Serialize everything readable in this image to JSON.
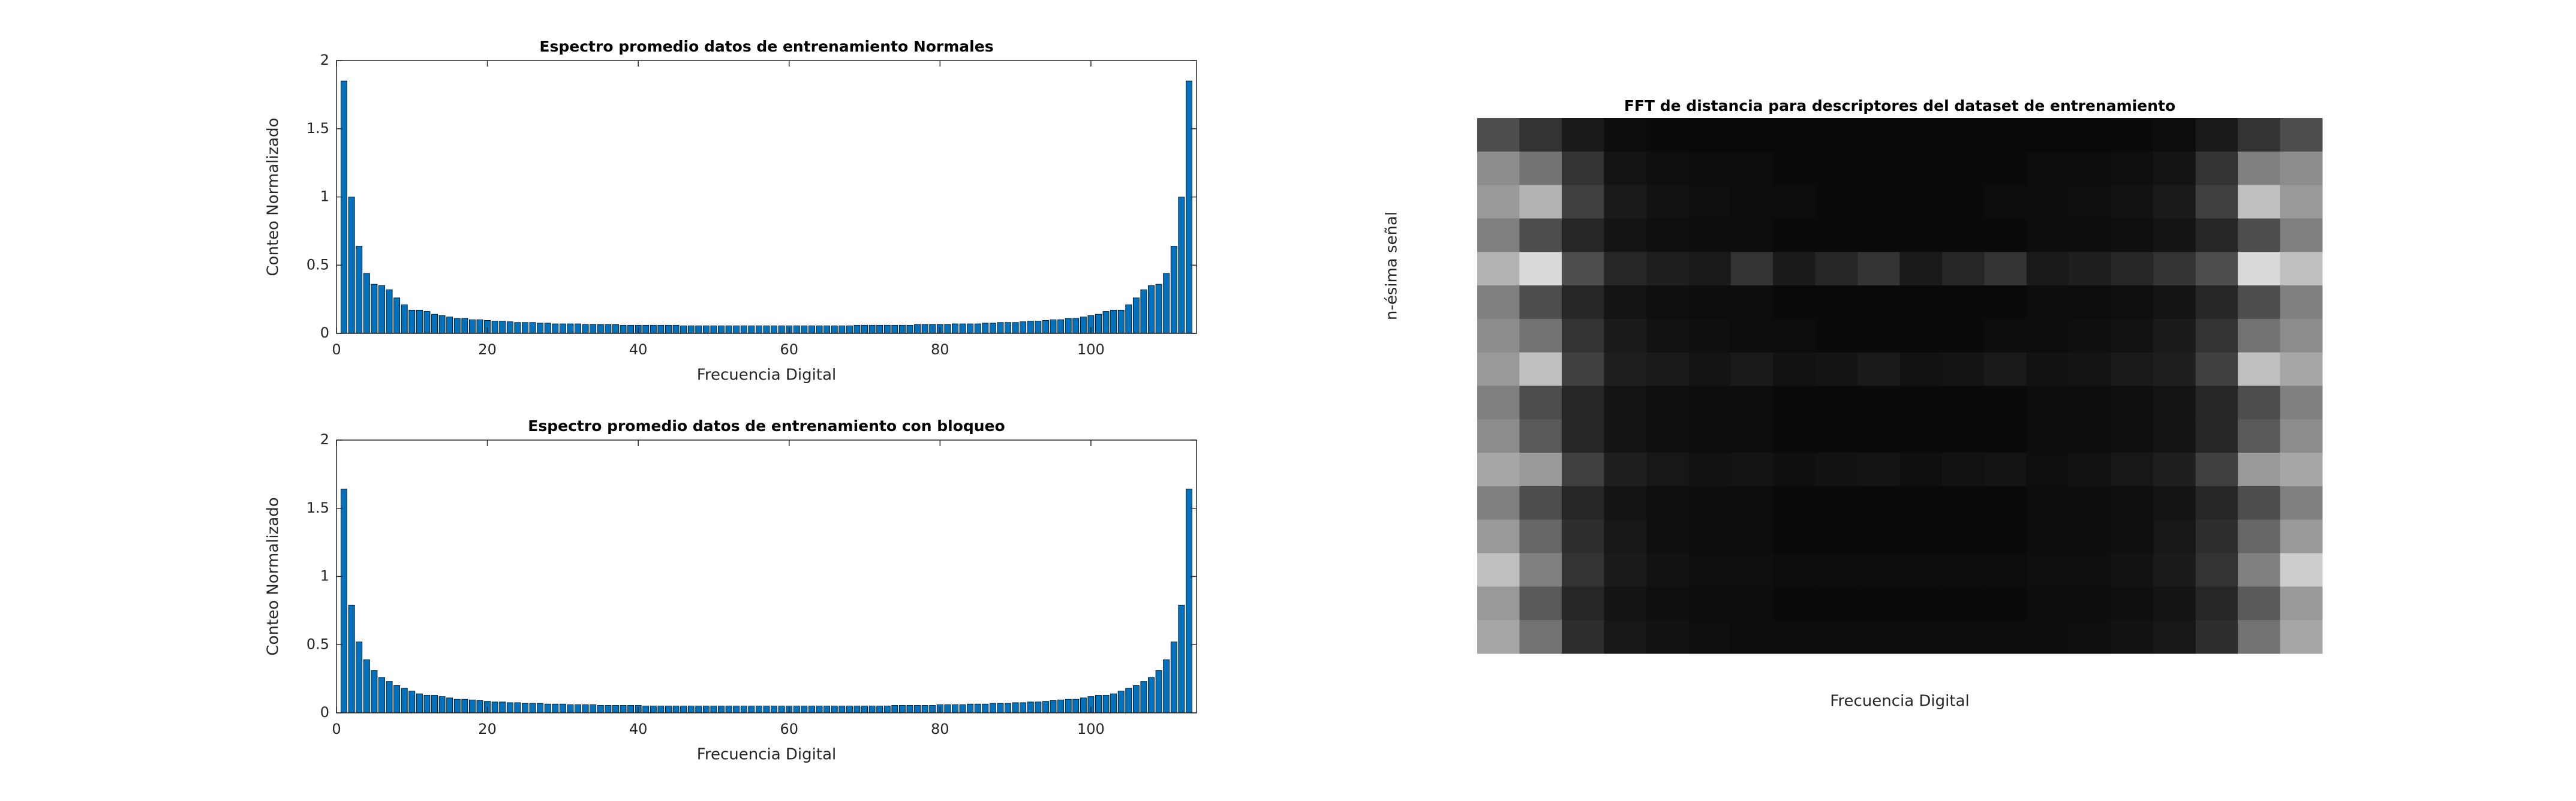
{
  "chart_data": [
    {
      "type": "bar",
      "title": "Espectro promedio datos de entrenamiento Normales",
      "xlabel": "Frecuencia Digital",
      "ylabel": "Conteo Normalizado",
      "color": "#0072bd",
      "x": [
        1,
        2,
        3,
        4,
        5,
        6,
        7,
        8,
        9,
        10,
        11,
        12,
        13,
        14,
        15,
        16,
        17,
        18,
        19,
        20,
        21,
        22,
        23,
        24,
        25,
        26,
        27,
        28,
        29,
        30,
        31,
        32,
        33,
        34,
        35,
        36,
        37,
        38,
        39,
        40,
        41,
        42,
        43,
        44,
        45,
        46,
        47,
        48,
        49,
        50,
        51,
        52,
        53,
        54,
        55,
        56,
        57,
        58,
        59,
        60,
        61,
        62,
        63,
        64,
        65,
        66,
        67,
        68,
        69,
        70,
        71,
        72,
        73,
        74,
        75,
        76,
        77,
        78,
        79,
        80,
        81,
        82,
        83,
        84,
        85,
        86,
        87,
        88,
        89,
        90,
        91,
        92,
        93,
        94,
        95,
        96,
        97,
        98,
        99,
        100,
        101,
        102,
        103,
        104,
        105,
        106,
        107,
        108,
        109,
        110,
        111,
        112,
        113
      ],
      "values": [
        1.85,
        1.0,
        0.64,
        0.44,
        0.36,
        0.35,
        0.32,
        0.26,
        0.21,
        0.17,
        0.17,
        0.16,
        0.14,
        0.13,
        0.12,
        0.11,
        0.11,
        0.1,
        0.1,
        0.095,
        0.09,
        0.09,
        0.085,
        0.08,
        0.08,
        0.08,
        0.075,
        0.075,
        0.07,
        0.07,
        0.07,
        0.07,
        0.065,
        0.065,
        0.065,
        0.065,
        0.065,
        0.06,
        0.06,
        0.06,
        0.06,
        0.06,
        0.06,
        0.06,
        0.06,
        0.055,
        0.055,
        0.055,
        0.055,
        0.055,
        0.055,
        0.055,
        0.055,
        0.055,
        0.055,
        0.055,
        0.055,
        0.055,
        0.055,
        0.055,
        0.055,
        0.055,
        0.055,
        0.055,
        0.055,
        0.055,
        0.055,
        0.055,
        0.06,
        0.06,
        0.06,
        0.06,
        0.06,
        0.06,
        0.06,
        0.06,
        0.065,
        0.065,
        0.065,
        0.065,
        0.065,
        0.07,
        0.07,
        0.07,
        0.07,
        0.075,
        0.075,
        0.08,
        0.08,
        0.08,
        0.085,
        0.09,
        0.09,
        0.095,
        0.1,
        0.1,
        0.11,
        0.11,
        0.12,
        0.13,
        0.14,
        0.16,
        0.17,
        0.17,
        0.21,
        0.26,
        0.32,
        0.35,
        0.36,
        0.44,
        0.64,
        1.0,
        1.85
      ],
      "xlim": [
        0,
        114
      ],
      "xticks": [
        0,
        20,
        40,
        60,
        80,
        100
      ],
      "ylim": [
        0,
        2
      ],
      "yticks": [
        0,
        0.5,
        1,
        1.5,
        2
      ]
    },
    {
      "type": "bar",
      "title": "Espectro promedio datos de entrenamiento con bloqueo",
      "xlabel": "Frecuencia Digital",
      "ylabel": "Conteo Normalizado",
      "color": "#0072bd",
      "x": [
        1,
        2,
        3,
        4,
        5,
        6,
        7,
        8,
        9,
        10,
        11,
        12,
        13,
        14,
        15,
        16,
        17,
        18,
        19,
        20,
        21,
        22,
        23,
        24,
        25,
        26,
        27,
        28,
        29,
        30,
        31,
        32,
        33,
        34,
        35,
        36,
        37,
        38,
        39,
        40,
        41,
        42,
        43,
        44,
        45,
        46,
        47,
        48,
        49,
        50,
        51,
        52,
        53,
        54,
        55,
        56,
        57,
        58,
        59,
        60,
        61,
        62,
        63,
        64,
        65,
        66,
        67,
        68,
        69,
        70,
        71,
        72,
        73,
        74,
        75,
        76,
        77,
        78,
        79,
        80,
        81,
        82,
        83,
        84,
        85,
        86,
        87,
        88,
        89,
        90,
        91,
        92,
        93,
        94,
        95,
        96,
        97,
        98,
        99,
        100,
        101,
        102,
        103,
        104,
        105,
        106,
        107,
        108,
        109,
        110,
        111,
        112,
        113
      ],
      "values": [
        1.64,
        0.79,
        0.52,
        0.39,
        0.31,
        0.26,
        0.23,
        0.2,
        0.18,
        0.16,
        0.14,
        0.13,
        0.13,
        0.12,
        0.11,
        0.1,
        0.1,
        0.095,
        0.09,
        0.085,
        0.08,
        0.08,
        0.075,
        0.075,
        0.07,
        0.07,
        0.07,
        0.065,
        0.065,
        0.065,
        0.06,
        0.06,
        0.06,
        0.06,
        0.055,
        0.055,
        0.055,
        0.055,
        0.055,
        0.055,
        0.05,
        0.05,
        0.05,
        0.05,
        0.05,
        0.05,
        0.05,
        0.05,
        0.05,
        0.05,
        0.05,
        0.05,
        0.05,
        0.05,
        0.05,
        0.05,
        0.05,
        0.05,
        0.05,
        0.05,
        0.05,
        0.05,
        0.05,
        0.05,
        0.05,
        0.05,
        0.05,
        0.05,
        0.05,
        0.05,
        0.05,
        0.05,
        0.05,
        0.055,
        0.055,
        0.055,
        0.055,
        0.055,
        0.055,
        0.06,
        0.06,
        0.06,
        0.06,
        0.065,
        0.065,
        0.065,
        0.07,
        0.07,
        0.07,
        0.075,
        0.075,
        0.08,
        0.08,
        0.085,
        0.09,
        0.095,
        0.1,
        0.1,
        0.11,
        0.12,
        0.13,
        0.13,
        0.14,
        0.16,
        0.18,
        0.2,
        0.23,
        0.26,
        0.31,
        0.39,
        0.52,
        0.79,
        1.64
      ],
      "xlim": [
        0,
        114
      ],
      "xticks": [
        0,
        20,
        40,
        60,
        80,
        100
      ],
      "ylim": [
        0,
        2
      ],
      "yticks": [
        0,
        0.5,
        1,
        1.5,
        2
      ]
    },
    {
      "type": "heatmap",
      "title": "FFT de distancia para descriptores del dataset de entrenamiento",
      "xlabel": "Frecuencia Digital",
      "ylabel": "n-ésima señal",
      "values": [
        [
          0.3,
          0.2,
          0.1,
          0.05,
          0.04,
          0.03,
          0.03,
          0.03,
          0.03,
          0.03,
          0.03,
          0.03,
          0.03,
          0.03,
          0.03,
          0.04,
          0.05,
          0.1,
          0.2,
          0.3
        ],
        [
          0.55,
          0.45,
          0.2,
          0.08,
          0.06,
          0.05,
          0.05,
          0.04,
          0.04,
          0.04,
          0.04,
          0.04,
          0.04,
          0.05,
          0.05,
          0.06,
          0.08,
          0.2,
          0.5,
          0.55
        ],
        [
          0.6,
          0.7,
          0.25,
          0.1,
          0.07,
          0.06,
          0.05,
          0.05,
          0.04,
          0.04,
          0.04,
          0.04,
          0.05,
          0.05,
          0.06,
          0.07,
          0.1,
          0.25,
          0.75,
          0.6
        ],
        [
          0.5,
          0.3,
          0.15,
          0.08,
          0.06,
          0.05,
          0.05,
          0.04,
          0.04,
          0.04,
          0.04,
          0.04,
          0.04,
          0.05,
          0.05,
          0.06,
          0.08,
          0.15,
          0.3,
          0.5
        ],
        [
          0.7,
          0.85,
          0.3,
          0.15,
          0.12,
          0.1,
          0.2,
          0.1,
          0.15,
          0.2,
          0.1,
          0.15,
          0.2,
          0.1,
          0.12,
          0.15,
          0.2,
          0.3,
          0.85,
          0.75
        ],
        [
          0.5,
          0.3,
          0.15,
          0.08,
          0.06,
          0.05,
          0.05,
          0.04,
          0.04,
          0.04,
          0.04,
          0.04,
          0.04,
          0.05,
          0.05,
          0.06,
          0.08,
          0.15,
          0.3,
          0.5
        ],
        [
          0.55,
          0.45,
          0.2,
          0.1,
          0.07,
          0.06,
          0.05,
          0.05,
          0.04,
          0.04,
          0.04,
          0.04,
          0.05,
          0.05,
          0.06,
          0.07,
          0.1,
          0.2,
          0.45,
          0.55
        ],
        [
          0.6,
          0.75,
          0.25,
          0.12,
          0.1,
          0.08,
          0.1,
          0.07,
          0.08,
          0.1,
          0.07,
          0.08,
          0.1,
          0.07,
          0.08,
          0.1,
          0.12,
          0.25,
          0.75,
          0.65
        ],
        [
          0.5,
          0.3,
          0.15,
          0.08,
          0.06,
          0.05,
          0.05,
          0.04,
          0.04,
          0.04,
          0.04,
          0.04,
          0.04,
          0.05,
          0.05,
          0.06,
          0.08,
          0.15,
          0.3,
          0.5
        ],
        [
          0.55,
          0.35,
          0.15,
          0.08,
          0.06,
          0.05,
          0.05,
          0.04,
          0.04,
          0.04,
          0.04,
          0.04,
          0.04,
          0.05,
          0.05,
          0.06,
          0.08,
          0.15,
          0.35,
          0.55
        ],
        [
          0.65,
          0.6,
          0.25,
          0.12,
          0.09,
          0.07,
          0.08,
          0.06,
          0.07,
          0.08,
          0.06,
          0.07,
          0.08,
          0.06,
          0.07,
          0.09,
          0.12,
          0.25,
          0.6,
          0.65
        ],
        [
          0.5,
          0.3,
          0.15,
          0.08,
          0.06,
          0.05,
          0.05,
          0.04,
          0.04,
          0.04,
          0.04,
          0.04,
          0.04,
          0.05,
          0.05,
          0.06,
          0.08,
          0.15,
          0.3,
          0.5
        ],
        [
          0.6,
          0.4,
          0.18,
          0.09,
          0.06,
          0.05,
          0.05,
          0.04,
          0.04,
          0.04,
          0.04,
          0.04,
          0.04,
          0.05,
          0.05,
          0.06,
          0.09,
          0.18,
          0.4,
          0.6
        ],
        [
          0.75,
          0.5,
          0.2,
          0.1,
          0.07,
          0.06,
          0.06,
          0.05,
          0.05,
          0.05,
          0.05,
          0.05,
          0.05,
          0.06,
          0.06,
          0.07,
          0.1,
          0.2,
          0.5,
          0.8
        ],
        [
          0.6,
          0.35,
          0.15,
          0.08,
          0.06,
          0.05,
          0.05,
          0.04,
          0.04,
          0.04,
          0.04,
          0.04,
          0.04,
          0.05,
          0.05,
          0.06,
          0.08,
          0.15,
          0.35,
          0.6
        ],
        [
          0.65,
          0.45,
          0.18,
          0.09,
          0.07,
          0.06,
          0.05,
          0.05,
          0.05,
          0.05,
          0.05,
          0.05,
          0.05,
          0.05,
          0.06,
          0.07,
          0.09,
          0.18,
          0.45,
          0.65
        ]
      ]
    }
  ]
}
